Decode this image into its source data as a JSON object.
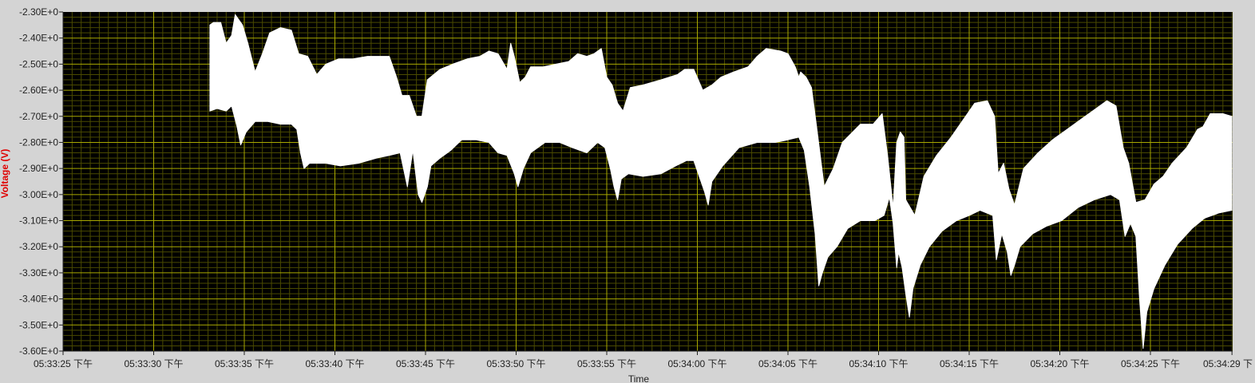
{
  "chart_data": {
    "type": "area",
    "title": "",
    "xlabel": "Time",
    "ylabel": "Voltage (V)",
    "ylim": [
      -3.6,
      -2.3
    ],
    "xlim_seconds": [
      0,
      64
    ],
    "grid": true,
    "colors": {
      "plot_background": "#000000",
      "major_grid": "#a8a800",
      "minor_grid": "#4a4a00",
      "trace": "#ffffff",
      "ylabel": "#e00000",
      "frame": "#d4d4d4"
    },
    "y_ticks": [
      {
        "value": -2.3,
        "label": "-2.30E+0"
      },
      {
        "value": -2.4,
        "label": "-2.40E+0"
      },
      {
        "value": -2.5,
        "label": "-2.50E+0"
      },
      {
        "value": -2.6,
        "label": "-2.60E+0"
      },
      {
        "value": -2.7,
        "label": "-2.70E+0"
      },
      {
        "value": -2.8,
        "label": "-2.80E+0"
      },
      {
        "value": -2.9,
        "label": "-2.90E+0"
      },
      {
        "value": -3.0,
        "label": "-3.00E+0"
      },
      {
        "value": -3.1,
        "label": "-3.10E+0"
      },
      {
        "value": -3.2,
        "label": "-3.20E+0"
      },
      {
        "value": -3.3,
        "label": "-3.30E+0"
      },
      {
        "value": -3.4,
        "label": "-3.40E+0"
      },
      {
        "value": -3.5,
        "label": "-3.50E+0"
      },
      {
        "value": -3.6,
        "label": "-3.60E+0"
      }
    ],
    "x_ticks": [
      {
        "t": 0,
        "label": "05:33:25 下午"
      },
      {
        "t": 5,
        "label": "05:33:30 下午"
      },
      {
        "t": 10,
        "label": "05:33:35 下午"
      },
      {
        "t": 15,
        "label": "05:33:40 下午"
      },
      {
        "t": 20,
        "label": "05:33:45 下午"
      },
      {
        "t": 25,
        "label": "05:33:50 下午"
      },
      {
        "t": 30,
        "label": "05:33:55 下午"
      },
      {
        "t": 35,
        "label": "05:34:00 下午"
      },
      {
        "t": 40,
        "label": "05:34:05 下午"
      },
      {
        "t": 45,
        "label": "05:34:10 下午"
      },
      {
        "t": 50,
        "label": "05:34:15 下午"
      },
      {
        "t": 55,
        "label": "05:34:20 下午"
      },
      {
        "t": 60,
        "label": "05:34:25 下午"
      },
      {
        "t": 64.5,
        "label": "05:34:29 下"
      }
    ],
    "series": [
      {
        "upper": [
          [
            8.1,
            -2.35
          ],
          [
            8.3,
            -2.34
          ],
          [
            8.7,
            -2.34
          ],
          [
            9.0,
            -2.42
          ],
          [
            9.3,
            -2.39
          ],
          [
            9.5,
            -2.31
          ],
          [
            9.9,
            -2.35
          ],
          [
            10.2,
            -2.42
          ],
          [
            10.6,
            -2.53
          ],
          [
            11.0,
            -2.46
          ],
          [
            11.4,
            -2.38
          ],
          [
            12.0,
            -2.36
          ],
          [
            12.6,
            -2.37
          ],
          [
            13.0,
            -2.46
          ],
          [
            13.5,
            -2.47
          ],
          [
            14.0,
            -2.54
          ],
          [
            14.5,
            -2.5
          ],
          [
            15.2,
            -2.48
          ],
          [
            16.0,
            -2.48
          ],
          [
            16.8,
            -2.47
          ],
          [
            17.5,
            -2.47
          ],
          [
            18.0,
            -2.47
          ],
          [
            18.4,
            -2.55
          ],
          [
            18.7,
            -2.62
          ],
          [
            19.1,
            -2.62
          ],
          [
            19.5,
            -2.7
          ],
          [
            19.8,
            -2.7
          ],
          [
            20.1,
            -2.56
          ],
          [
            20.8,
            -2.52
          ],
          [
            21.5,
            -2.5
          ],
          [
            22.3,
            -2.48
          ],
          [
            23.0,
            -2.47
          ],
          [
            23.5,
            -2.45
          ],
          [
            24.0,
            -2.46
          ],
          [
            24.5,
            -2.52
          ],
          [
            24.7,
            -2.42
          ],
          [
            24.9,
            -2.47
          ],
          [
            25.2,
            -2.57
          ],
          [
            25.5,
            -2.55
          ],
          [
            25.8,
            -2.51
          ],
          [
            26.5,
            -2.51
          ],
          [
            27.2,
            -2.5
          ],
          [
            27.9,
            -2.49
          ],
          [
            28.4,
            -2.46
          ],
          [
            28.9,
            -2.47
          ],
          [
            29.3,
            -2.46
          ],
          [
            29.7,
            -2.44
          ],
          [
            30.0,
            -2.55
          ],
          [
            30.3,
            -2.58
          ],
          [
            30.6,
            -2.65
          ],
          [
            30.9,
            -2.68
          ],
          [
            31.3,
            -2.59
          ],
          [
            32.0,
            -2.58
          ],
          [
            33.0,
            -2.56
          ],
          [
            33.9,
            -2.54
          ],
          [
            34.3,
            -2.52
          ],
          [
            34.8,
            -2.52
          ],
          [
            35.3,
            -2.6
          ],
          [
            35.8,
            -2.58
          ],
          [
            36.3,
            -2.55
          ],
          [
            37.0,
            -2.53
          ],
          [
            37.8,
            -2.51
          ],
          [
            38.3,
            -2.47
          ],
          [
            38.8,
            -2.44
          ],
          [
            39.6,
            -2.45
          ],
          [
            40.0,
            -2.46
          ],
          [
            40.4,
            -2.51
          ],
          [
            40.6,
            -2.55
          ],
          [
            40.7,
            -2.53
          ],
          [
            41.0,
            -2.55
          ],
          [
            41.3,
            -2.59
          ],
          [
            41.6,
            -2.75
          ],
          [
            42.0,
            -2.97
          ],
          [
            42.5,
            -2.9
          ],
          [
            43.0,
            -2.8
          ],
          [
            44.0,
            -2.73
          ],
          [
            44.7,
            -2.73
          ],
          [
            45.2,
            -2.69
          ],
          [
            45.5,
            -2.85
          ],
          [
            45.8,
            -3.05
          ],
          [
            46.0,
            -2.8
          ],
          [
            46.2,
            -2.76
          ],
          [
            46.4,
            -2.78
          ],
          [
            46.5,
            -3.02
          ],
          [
            47.0,
            -3.08
          ],
          [
            47.5,
            -2.93
          ],
          [
            48.2,
            -2.85
          ],
          [
            49.0,
            -2.78
          ],
          [
            49.8,
            -2.7
          ],
          [
            50.3,
            -2.65
          ],
          [
            51.0,
            -2.64
          ],
          [
            51.4,
            -2.7
          ],
          [
            51.6,
            -2.92
          ],
          [
            51.9,
            -2.88
          ],
          [
            52.2,
            -2.98
          ],
          [
            52.5,
            -3.04
          ],
          [
            53.0,
            -2.9
          ],
          [
            53.8,
            -2.84
          ],
          [
            54.6,
            -2.79
          ],
          [
            55.4,
            -2.75
          ],
          [
            56.2,
            -2.71
          ],
          [
            57.0,
            -2.67
          ],
          [
            57.6,
            -2.64
          ],
          [
            58.1,
            -2.66
          ],
          [
            58.5,
            -2.82
          ],
          [
            58.8,
            -2.88
          ],
          [
            59.2,
            -3.03
          ],
          [
            59.7,
            -3.02
          ],
          [
            60.2,
            -2.96
          ],
          [
            60.7,
            -2.93
          ],
          [
            61.2,
            -2.88
          ],
          [
            62.0,
            -2.82
          ],
          [
            62.6,
            -2.75
          ],
          [
            62.9,
            -2.74
          ],
          [
            63.3,
            -2.69
          ],
          [
            64.0,
            -2.69
          ],
          [
            64.5,
            -2.7
          ]
        ],
        "lower": [
          [
            8.1,
            -2.68
          ],
          [
            8.5,
            -2.67
          ],
          [
            9.0,
            -2.68
          ],
          [
            9.3,
            -2.66
          ],
          [
            9.6,
            -2.74
          ],
          [
            9.8,
            -2.81
          ],
          [
            10.1,
            -2.76
          ],
          [
            10.6,
            -2.72
          ],
          [
            11.3,
            -2.72
          ],
          [
            12.0,
            -2.73
          ],
          [
            12.6,
            -2.73
          ],
          [
            12.9,
            -2.75
          ],
          [
            13.1,
            -2.84
          ],
          [
            13.3,
            -2.9
          ],
          [
            13.6,
            -2.88
          ],
          [
            14.5,
            -2.88
          ],
          [
            15.3,
            -2.89
          ],
          [
            16.3,
            -2.88
          ],
          [
            17.3,
            -2.86
          ],
          [
            18.0,
            -2.85
          ],
          [
            18.6,
            -2.84
          ],
          [
            19.0,
            -2.97
          ],
          [
            19.3,
            -2.83
          ],
          [
            19.6,
            -3.0
          ],
          [
            19.8,
            -3.03
          ],
          [
            20.1,
            -2.97
          ],
          [
            20.3,
            -2.89
          ],
          [
            20.8,
            -2.86
          ],
          [
            21.4,
            -2.83
          ],
          [
            22.0,
            -2.79
          ],
          [
            22.8,
            -2.79
          ],
          [
            23.5,
            -2.8
          ],
          [
            24.0,
            -2.84
          ],
          [
            24.5,
            -2.85
          ],
          [
            24.9,
            -2.92
          ],
          [
            25.1,
            -2.97
          ],
          [
            25.4,
            -2.9
          ],
          [
            25.8,
            -2.84
          ],
          [
            26.6,
            -2.8
          ],
          [
            27.4,
            -2.8
          ],
          [
            28.1,
            -2.82
          ],
          [
            28.9,
            -2.84
          ],
          [
            29.5,
            -2.8
          ],
          [
            29.9,
            -2.82
          ],
          [
            30.2,
            -2.9
          ],
          [
            30.4,
            -2.97
          ],
          [
            30.6,
            -3.02
          ],
          [
            30.8,
            -2.94
          ],
          [
            31.2,
            -2.92
          ],
          [
            32.0,
            -2.93
          ],
          [
            33.0,
            -2.92
          ],
          [
            33.8,
            -2.89
          ],
          [
            34.4,
            -2.87
          ],
          [
            34.8,
            -2.87
          ],
          [
            35.1,
            -2.93
          ],
          [
            35.4,
            -2.99
          ],
          [
            35.6,
            -3.04
          ],
          [
            35.8,
            -2.95
          ],
          [
            36.4,
            -2.89
          ],
          [
            37.3,
            -2.82
          ],
          [
            38.3,
            -2.8
          ],
          [
            39.3,
            -2.8
          ],
          [
            40.0,
            -2.79
          ],
          [
            40.6,
            -2.78
          ],
          [
            40.9,
            -2.83
          ],
          [
            41.2,
            -2.97
          ],
          [
            41.5,
            -3.15
          ],
          [
            41.7,
            -3.35
          ],
          [
            41.9,
            -3.3
          ],
          [
            42.2,
            -3.24
          ],
          [
            42.7,
            -3.2
          ],
          [
            43.3,
            -3.13
          ],
          [
            44.0,
            -3.1
          ],
          [
            44.8,
            -3.1
          ],
          [
            45.3,
            -3.08
          ],
          [
            45.6,
            -3.01
          ],
          [
            45.8,
            -3.11
          ],
          [
            46.0,
            -3.28
          ],
          [
            46.1,
            -3.22
          ],
          [
            46.3,
            -3.28
          ],
          [
            46.5,
            -3.38
          ],
          [
            46.7,
            -3.47
          ],
          [
            46.9,
            -3.36
          ],
          [
            47.3,
            -3.27
          ],
          [
            47.8,
            -3.2
          ],
          [
            48.5,
            -3.14
          ],
          [
            49.3,
            -3.1
          ],
          [
            50.0,
            -3.08
          ],
          [
            50.6,
            -3.06
          ],
          [
            51.3,
            -3.08
          ],
          [
            51.5,
            -3.25
          ],
          [
            51.8,
            -3.15
          ],
          [
            52.1,
            -3.22
          ],
          [
            52.3,
            -3.31
          ],
          [
            52.5,
            -3.27
          ],
          [
            52.8,
            -3.2
          ],
          [
            53.5,
            -3.15
          ],
          [
            54.3,
            -3.12
          ],
          [
            55.1,
            -3.1
          ],
          [
            56.0,
            -3.05
          ],
          [
            56.9,
            -3.02
          ],
          [
            57.8,
            -3.0
          ],
          [
            58.3,
            -3.02
          ],
          [
            58.6,
            -3.16
          ],
          [
            58.9,
            -3.11
          ],
          [
            59.2,
            -3.16
          ],
          [
            59.4,
            -3.4
          ],
          [
            59.6,
            -3.59
          ],
          [
            59.8,
            -3.45
          ],
          [
            60.2,
            -3.36
          ],
          [
            60.8,
            -3.27
          ],
          [
            61.5,
            -3.19
          ],
          [
            62.3,
            -3.13
          ],
          [
            63.0,
            -3.09
          ],
          [
            63.8,
            -3.07
          ],
          [
            64.5,
            -3.06
          ]
        ]
      }
    ]
  }
}
